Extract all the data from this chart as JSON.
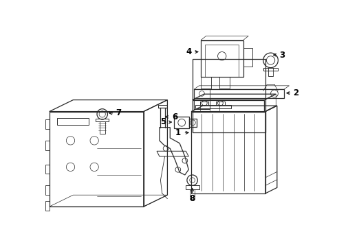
{
  "bg_color": "#ffffff",
  "line_color": "#2a2a2a",
  "text_color": "#000000",
  "fig_width": 4.9,
  "fig_height": 3.6,
  "dpi": 100,
  "arrow_color": "#1a1a1a",
  "lw": 0.9
}
